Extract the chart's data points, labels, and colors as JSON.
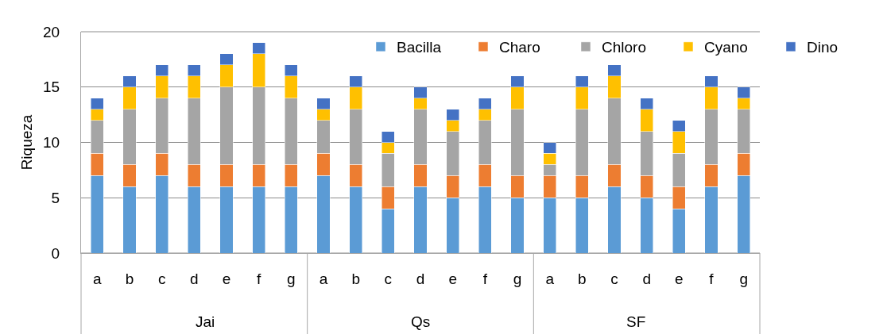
{
  "chart_data": {
    "type": "bar",
    "stacked": true,
    "ylabel": "Riqueza",
    "categories": [
      "a",
      "b",
      "c",
      "d",
      "e",
      "f",
      "g",
      "a",
      "b",
      "c",
      "d",
      "e",
      "f",
      "g",
      "a",
      "b",
      "c",
      "d",
      "e",
      "f",
      "g"
    ],
    "annotations": [
      "Jai",
      "Qs",
      "SF"
    ],
    "series": [
      {
        "name": "Bacilla",
        "color": "#5b9bd5",
        "values": [
          7,
          6,
          7,
          6,
          6,
          6,
          6,
          7,
          6,
          4,
          6,
          5,
          6,
          5,
          5,
          5,
          6,
          5,
          4,
          6,
          7
        ]
      },
      {
        "name": "Charo",
        "color": "#ed7d31",
        "values": [
          2,
          2,
          2,
          2,
          2,
          2,
          2,
          2,
          2,
          2,
          2,
          2,
          2,
          2,
          2,
          2,
          2,
          2,
          2,
          2,
          2
        ]
      },
      {
        "name": "Chloro",
        "color": "#a5a5a5",
        "values": [
          3,
          5,
          5,
          6,
          7,
          7,
          6,
          3,
          5,
          3,
          5,
          4,
          4,
          6,
          1,
          6,
          6,
          4,
          3,
          5,
          4
        ]
      },
      {
        "name": "Cyano",
        "color": "#ffc000",
        "values": [
          1,
          2,
          2,
          2,
          2,
          3,
          2,
          1,
          2,
          1,
          1,
          1,
          1,
          2,
          1,
          2,
          2,
          2,
          2,
          2,
          1
        ]
      },
      {
        "name": "Dino",
        "color": "#4472c4",
        "values": [
          1,
          1,
          1,
          1,
          1,
          1,
          1,
          1,
          1,
          1,
          1,
          1,
          1,
          1,
          1,
          1,
          1,
          1,
          1,
          1,
          1
        ]
      }
    ],
    "ylim": [
      0,
      20
    ],
    "yticks": [
      0,
      5,
      10,
      15,
      20
    ],
    "grid": "y",
    "legend": "top right"
  }
}
